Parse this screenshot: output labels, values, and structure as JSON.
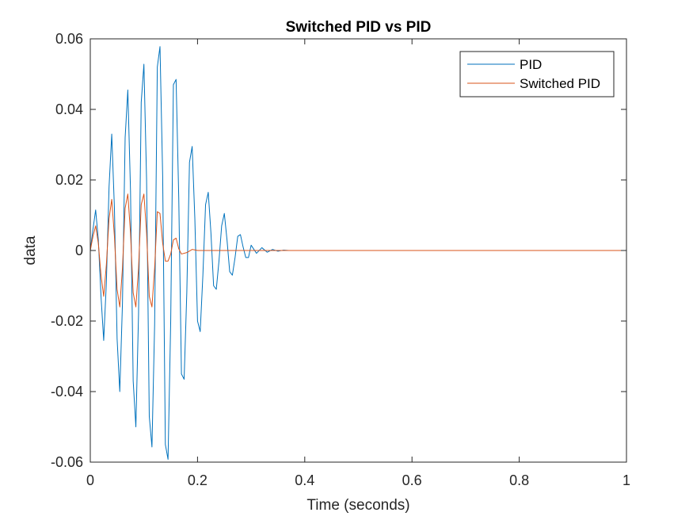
{
  "chart_data": {
    "type": "line",
    "title": "Switched PID vs PID",
    "xlabel": "Time (seconds)",
    "ylabel": "data",
    "xlim": [
      0,
      1
    ],
    "ylim": [
      -0.06,
      0.06
    ],
    "xticks": [
      0,
      0.2,
      0.4,
      0.6,
      0.8,
      1
    ],
    "xtick_labels": [
      "0",
      "0.2",
      "0.4",
      "0.6",
      "0.8",
      "1"
    ],
    "yticks": [
      -0.06,
      -0.04,
      -0.02,
      0,
      0.02,
      0.04,
      0.06
    ],
    "ytick_labels": [
      "-0.06",
      "-0.04",
      "-0.02",
      "0",
      "0.02",
      "0.04",
      "0.06"
    ],
    "grid": false,
    "legend_position": "top-right",
    "series": [
      {
        "name": "PID",
        "color": "#0072BD",
        "x": [
          0,
          0.005,
          0.01,
          0.015,
          0.02,
          0.025,
          0.03,
          0.035,
          0.04,
          0.045,
          0.05,
          0.055,
          0.06,
          0.065,
          0.07,
          0.075,
          0.08,
          0.085,
          0.09,
          0.095,
          0.1,
          0.105,
          0.11,
          0.115,
          0.12,
          0.125,
          0.13,
          0.135,
          0.14,
          0.145,
          0.15,
          0.155,
          0.16,
          0.165,
          0.17,
          0.175,
          0.18,
          0.185,
          0.19,
          0.195,
          0.2,
          0.205,
          0.21,
          0.215,
          0.22,
          0.225,
          0.23,
          0.235,
          0.24,
          0.245,
          0.25,
          0.255,
          0.26,
          0.265,
          0.27,
          0.275,
          0.28,
          0.285,
          0.29,
          0.295,
          0.3,
          0.31,
          0.32,
          0.33,
          0.34,
          0.35,
          0.36,
          0.37,
          0.38,
          0.4,
          0.5,
          0.6,
          0.7,
          0.8,
          0.9,
          1.0
        ],
        "y": [
          0,
          0.006,
          0.0115,
          0.003,
          -0.013,
          -0.0255,
          -0.009,
          0.018,
          0.033,
          0.012,
          -0.025,
          -0.04,
          -0.015,
          0.032,
          0.0455,
          0.017,
          -0.037,
          -0.05,
          -0.018,
          0.042,
          0.0528,
          0.02,
          -0.047,
          -0.0557,
          -0.021,
          0.052,
          0.0578,
          0.021,
          -0.055,
          -0.0592,
          -0.02,
          0.047,
          0.0485,
          0.015,
          -0.035,
          -0.0365,
          -0.012,
          0.025,
          0.0295,
          0.009,
          -0.02,
          -0.023,
          -0.007,
          0.013,
          0.0165,
          0.005,
          -0.01,
          -0.011,
          -0.003,
          0.007,
          0.0105,
          0.003,
          -0.006,
          -0.007,
          -0.002,
          0.004,
          0.0045,
          0.001,
          -0.002,
          -0.002,
          0.0015,
          -0.0008,
          0.0008,
          -0.0005,
          0.0003,
          -0.0002,
          0.0001,
          0,
          0,
          0,
          0,
          0,
          0,
          0,
          0,
          0
        ]
      },
      {
        "name": "Switched PID",
        "color": "#D95319",
        "x": [
          0,
          0.005,
          0.01,
          0.015,
          0.02,
          0.025,
          0.03,
          0.035,
          0.04,
          0.045,
          0.05,
          0.055,
          0.06,
          0.065,
          0.07,
          0.075,
          0.08,
          0.085,
          0.09,
          0.095,
          0.1,
          0.105,
          0.11,
          0.115,
          0.12,
          0.125,
          0.13,
          0.135,
          0.14,
          0.145,
          0.15,
          0.155,
          0.16,
          0.165,
          0.17,
          0.18,
          0.19,
          0.2,
          0.25,
          0.3,
          0.4,
          0.5,
          0.6,
          0.7,
          0.8,
          0.9,
          1.0
        ],
        "y": [
          0,
          0.004,
          0.007,
          0.002,
          -0.007,
          -0.013,
          -0.004,
          0.009,
          0.0145,
          0.004,
          -0.011,
          -0.016,
          -0.005,
          0.012,
          0.016,
          0.005,
          -0.012,
          -0.016,
          -0.005,
          0.013,
          0.016,
          0.005,
          -0.013,
          -0.016,
          -0.005,
          0.011,
          0.0105,
          0.002,
          -0.003,
          -0.003,
          -0.001,
          0.003,
          0.0035,
          0.0005,
          -0.001,
          -0.0006,
          0.0003,
          0,
          0,
          0,
          0,
          0,
          0,
          0,
          0,
          0,
          0
        ]
      }
    ]
  }
}
